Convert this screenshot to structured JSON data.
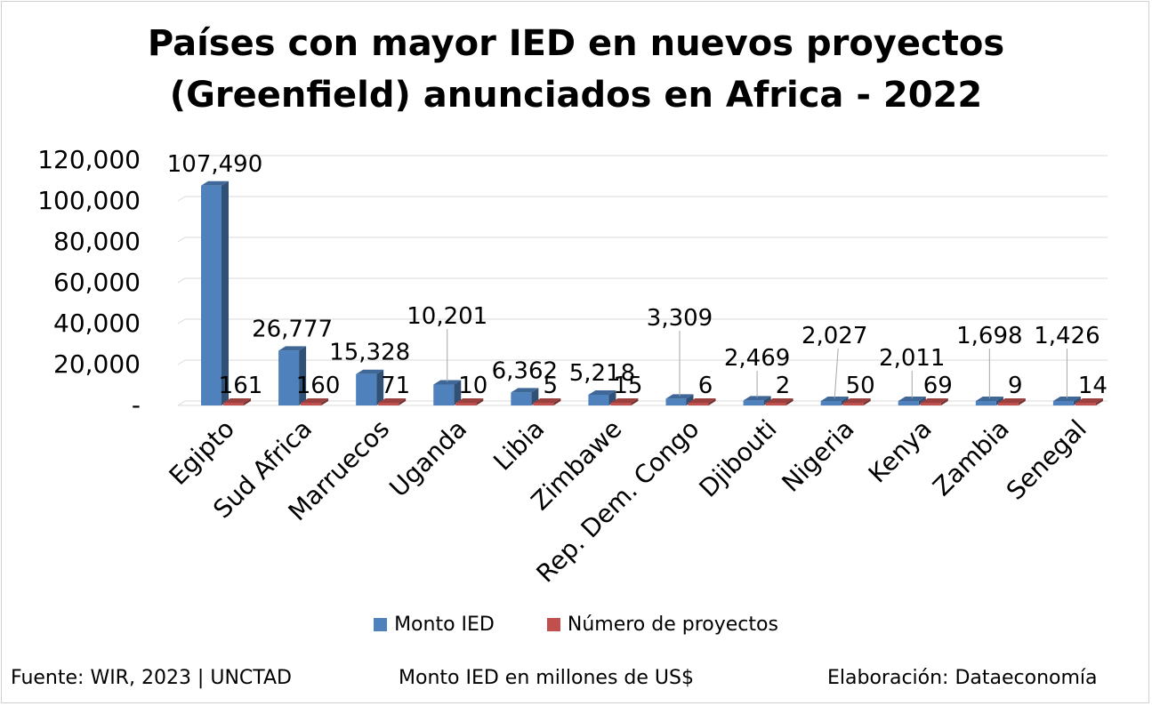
{
  "chart_data": {
    "type": "bar",
    "title": "Países con mayor IED en nuevos proyectos (Greenfield) anunciados en Africa - 2022",
    "title_lines": [
      "Países con mayor IED en nuevos proyectos",
      "(Greenfield) anunciados en Africa - 2022"
    ],
    "categories": [
      "Egipto",
      "Sud Africa",
      "Marruecos",
      "Uganda",
      "Libia",
      "Zimbawe",
      "Rep. Dem. Congo",
      "Djibouti",
      "Nigeria",
      "Kenya",
      "Zambia",
      "Senegal"
    ],
    "series": [
      {
        "name": "Monto IED",
        "color": "#4F81BD",
        "values": [
          107490,
          26777,
          15328,
          10201,
          6362,
          5218,
          3309,
          2469,
          2027,
          2011,
          1698,
          1426
        ],
        "labels": [
          "107,490",
          "26,777",
          "15,328",
          "10,201",
          "6,362",
          "5,218",
          "3,309",
          "2,469",
          "2,027",
          "2,011",
          "1,698",
          "1,426"
        ]
      },
      {
        "name": "Número de proyectos",
        "color": "#C0504D",
        "values": [
          161,
          160,
          71,
          10,
          5,
          15,
          6,
          2,
          50,
          69,
          9,
          14
        ],
        "labels": [
          "161",
          "160",
          "71",
          "10",
          "5",
          "15",
          "6",
          "2",
          "50",
          "69",
          "9",
          "14"
        ]
      }
    ],
    "ylim": [
      0,
      120000
    ],
    "yticks": [
      "-",
      "20,000",
      "40,000",
      "60,000",
      "80,000",
      "100,000",
      "120,000"
    ],
    "ytick_values": [
      0,
      20000,
      40000,
      60000,
      80000,
      100000,
      120000
    ],
    "grid": true,
    "legend_position": "bottom",
    "style": "3d-clustered-column"
  },
  "legend": {
    "monto": "Monto IED",
    "proyectos": "Número de proyectos",
    "monto_color": "#4F81BD",
    "proyectos_color": "#C0504D"
  },
  "footer": {
    "source": "Fuente: WIR, 2023 | UNCTAD",
    "unit": "Monto IED en millones de US$",
    "credit": "Elaboración: Dataeconomía"
  }
}
